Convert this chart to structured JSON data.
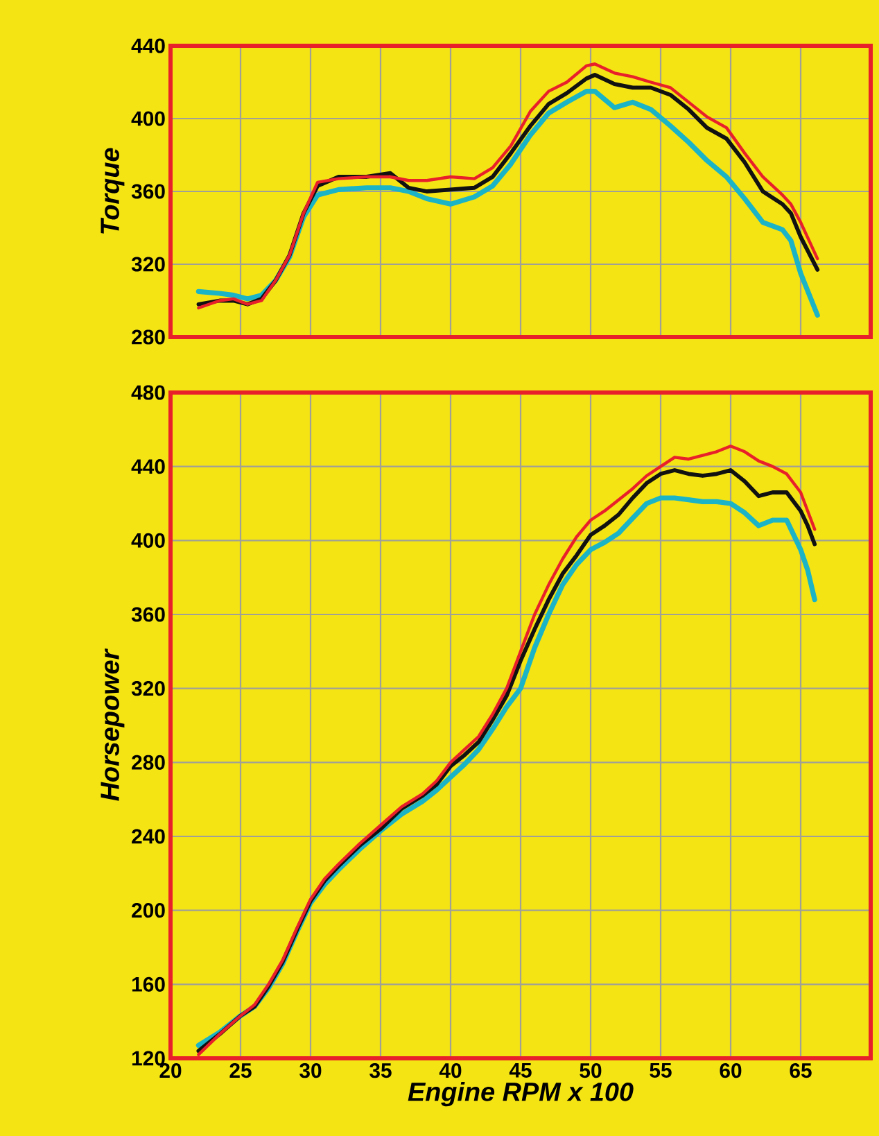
{
  "chart_data": [
    {
      "type": "line",
      "ylabel": "Torque",
      "xlim": [
        20,
        70
      ],
      "ylim": [
        280,
        440
      ],
      "xticks": [
        20,
        25,
        30,
        35,
        40,
        45,
        50,
        55,
        60,
        65
      ],
      "yticks": [
        280,
        320,
        360,
        400,
        440
      ],
      "grid": true,
      "tick_labels": "y",
      "line_style": "solid",
      "x": [
        22,
        23.5,
        24.5,
        25.5,
        26.5,
        27.5,
        28.5,
        29.5,
        30.5,
        32,
        34,
        35.7,
        37,
        38.3,
        40,
        41.7,
        43,
        44.3,
        45.7,
        47,
        48.3,
        49.7,
        50.3,
        51.7,
        53,
        54.3,
        55.7,
        57,
        58.3,
        59.7,
        61,
        62.3,
        63.7,
        64.3,
        65,
        66.2
      ],
      "series": [
        {
          "color": "#1bb3c6",
          "values": [
            305,
            304,
            303,
            301,
            303,
            311,
            324,
            346,
            358,
            361,
            362,
            362,
            360,
            356,
            353,
            357,
            363,
            375,
            391,
            403,
            409,
            415,
            415,
            406,
            409,
            405,
            396,
            387,
            377,
            368,
            356,
            343,
            339,
            333,
            315,
            292
          ]
        },
        {
          "color": "#111111",
          "values": [
            298,
            300,
            300,
            298,
            301,
            311,
            325,
            348,
            363,
            368,
            368,
            370,
            362,
            360,
            361,
            362,
            368,
            381,
            396,
            408,
            414,
            422,
            424,
            419,
            417,
            417,
            413,
            405,
            395,
            389,
            376,
            360,
            353,
            348,
            335,
            317
          ]
        },
        {
          "color": "#e8202a",
          "values": [
            296,
            300,
            301,
            298,
            300,
            311,
            325,
            348,
            365,
            367,
            368,
            368,
            366,
            366,
            368,
            367,
            373,
            385,
            404,
            415,
            420,
            429,
            430,
            425,
            423,
            420,
            417,
            409,
            401,
            395,
            381,
            368,
            358,
            353,
            343,
            323
          ]
        }
      ]
    },
    {
      "type": "line",
      "ylabel": "Horsepower",
      "xlabel": "Engine RPM x 100",
      "xlim": [
        20,
        70
      ],
      "ylim": [
        120,
        480
      ],
      "xticks": [
        20,
        25,
        30,
        35,
        40,
        45,
        50,
        55,
        60,
        65
      ],
      "yticks": [
        120,
        160,
        200,
        240,
        280,
        320,
        360,
        400,
        440,
        480
      ],
      "grid": true,
      "line_style": "solid",
      "x": [
        22,
        23.5,
        25,
        26,
        27,
        28,
        29,
        30,
        31,
        32,
        33.5,
        35,
        36.5,
        38,
        39,
        40,
        41,
        42,
        43,
        44,
        45,
        46,
        47,
        48,
        49,
        50,
        51,
        52,
        53,
        54,
        55,
        56,
        57,
        58,
        59,
        60,
        61,
        62,
        63,
        64,
        65,
        65.5,
        66
      ],
      "series": [
        {
          "color": "#1bb3c6",
          "values": [
            127,
            134,
            143,
            148,
            158,
            171,
            188,
            204,
            214,
            222,
            233,
            243,
            252,
            259,
            265,
            272,
            279,
            287,
            298,
            310,
            320,
            342,
            360,
            376,
            387,
            395,
            399,
            404,
            412,
            420,
            423,
            423,
            422,
            421,
            421,
            420,
            415,
            408,
            411,
            411,
            395,
            384,
            368
          ]
        },
        {
          "color": "#111111",
          "values": [
            124,
            133,
            143,
            148,
            159,
            172,
            189,
            205,
            216,
            224,
            235,
            244,
            255,
            262,
            268,
            278,
            284,
            291,
            303,
            316,
            335,
            352,
            368,
            382,
            392,
            403,
            408,
            414,
            423,
            431,
            436,
            438,
            436,
            435,
            436,
            438,
            432,
            424,
            426,
            426,
            416,
            408,
            398
          ]
        },
        {
          "color": "#e8202a",
          "values": [
            122,
            133,
            143,
            149,
            160,
            173,
            190,
            206,
            217,
            225,
            236,
            246,
            256,
            263,
            270,
            280,
            287,
            294,
            306,
            320,
            340,
            360,
            376,
            390,
            402,
            411,
            416,
            422,
            428,
            435,
            440,
            445,
            444,
            446,
            448,
            451,
            448,
            443,
            440,
            436,
            426,
            416,
            406
          ]
        }
      ]
    }
  ]
}
